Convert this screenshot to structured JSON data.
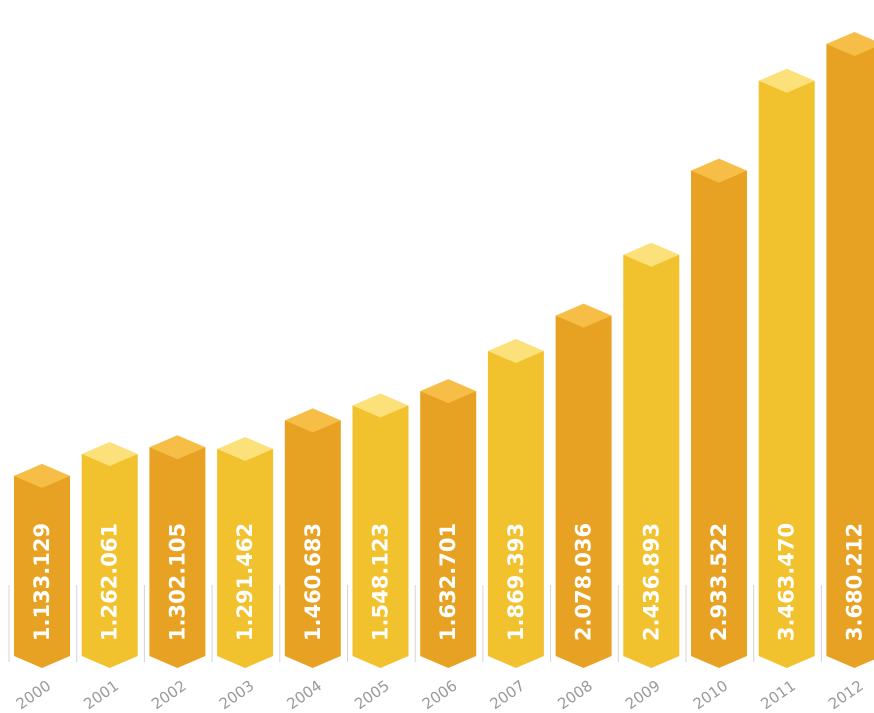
{
  "chart_data": {
    "type": "bar",
    "categories": [
      "2000",
      "2001",
      "2002",
      "2003",
      "2004",
      "2005",
      "2006",
      "2007",
      "2008",
      "2009",
      "2010",
      "2011",
      "2012"
    ],
    "values": [
      1133129,
      1262061,
      1302105,
      1291462,
      1460683,
      1548123,
      1632701,
      1869393,
      2078036,
      2436893,
      2933522,
      3463470,
      3680212
    ],
    "value_labels": [
      "1.133.129",
      "1.262.061",
      "1.302.105",
      "1.291.462",
      "1.460.683",
      "1.548.123",
      "1.632.701",
      "1.869.393",
      "2.078.036",
      "2.436.893",
      "2.933.522",
      "3.463.470",
      "3.680.212"
    ],
    "title": "",
    "xlabel": "",
    "ylabel": "",
    "grid": false,
    "legend": "none",
    "colors": {
      "dark_face": "#E8A223",
      "dark_top": "#F7BE47",
      "light_face": "#F2C12E",
      "light_top": "#FCE07A",
      "value_text": "#FFFFFF",
      "year_text": "#9A9A9A",
      "guide_line": "#D4D4D4"
    },
    "bar_shades": [
      "dark",
      "light",
      "dark",
      "light",
      "dark",
      "light",
      "dark",
      "light",
      "dark",
      "light",
      "dark",
      "light",
      "dark"
    ]
  }
}
